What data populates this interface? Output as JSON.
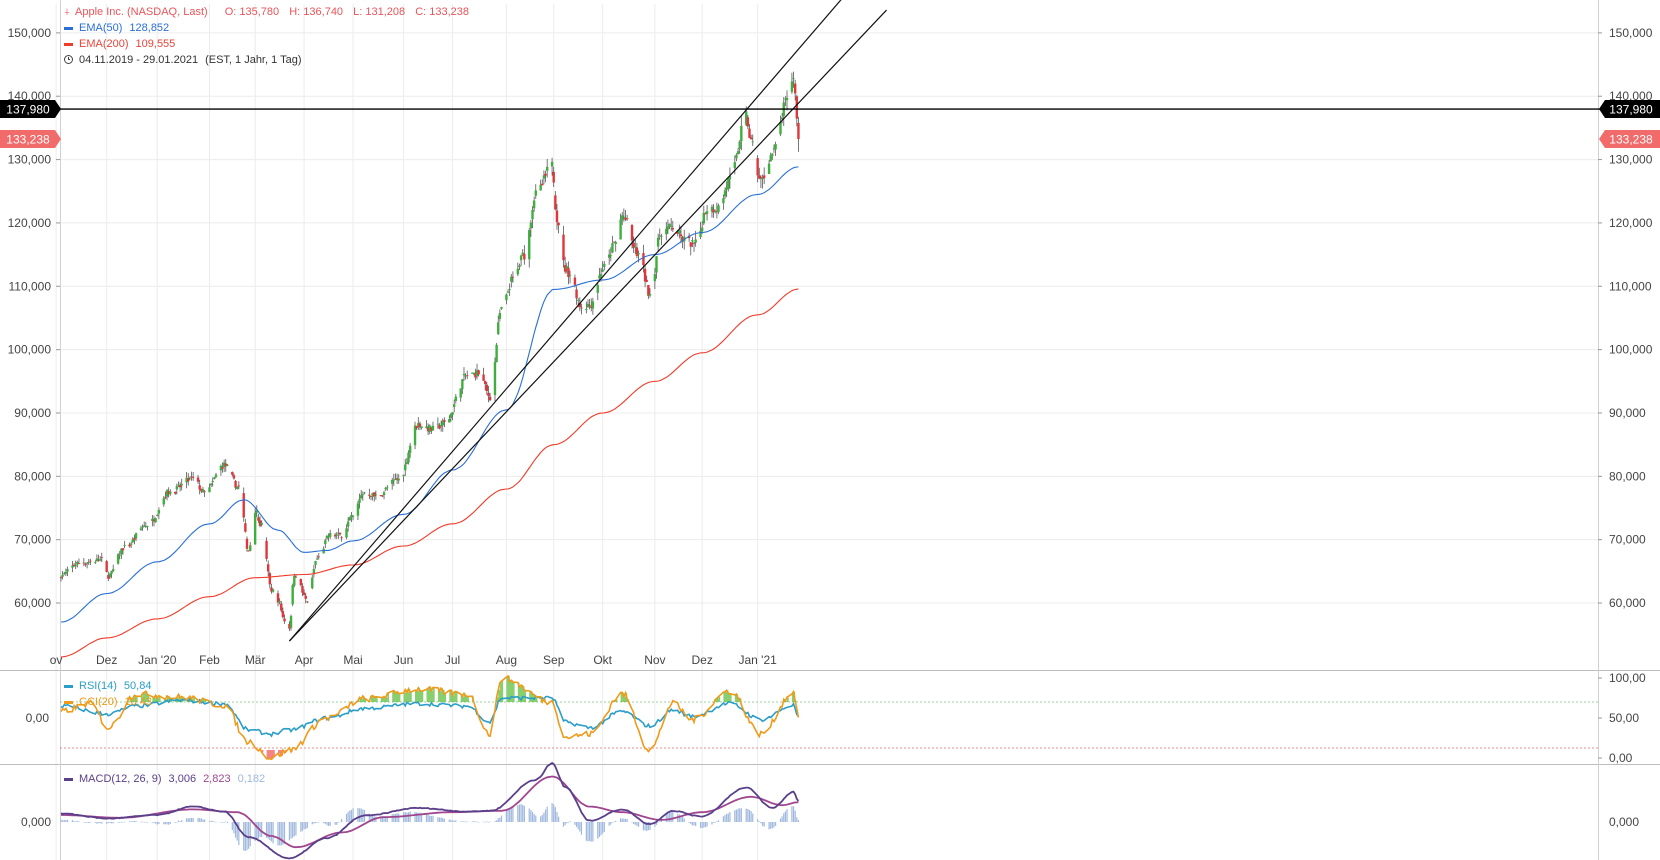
{
  "legend": {
    "title": "Apple Inc. (NASDAQ, Last)",
    "ohlc": {
      "o": "O: 135,780",
      "h": "H: 136,740",
      "l": "L: 131,208",
      "c": "C: 133,238"
    },
    "ema50": {
      "label": "EMA(50)",
      "value": "128,852"
    },
    "ema200": {
      "label": "EMA(200)",
      "value": "109,555"
    },
    "range": "04.11.2019 - 29.01.2021",
    "interval": "(EST, 1 Jahr, 1 Tag)",
    "rsi": {
      "label": "RSI(14)",
      "value": "50,84"
    },
    "cci": {
      "label": "CCI(20)",
      "value": "10,43"
    },
    "macd": {
      "label": "MACD(12, 26, 9)",
      "v1": "3,006",
      "v2": "2,823",
      "v3": "0,182"
    }
  },
  "colors": {
    "up": "#3fae3f",
    "down": "#e0363b",
    "ema50": "#2a6fd6",
    "ema200": "#f03c2a",
    "rsi": "#2a9ec9",
    "cci": "#f09a1a",
    "macd": "#5a3f8a",
    "signal": "#a0468f",
    "hist": "#9fb8de",
    "hline": "#000000",
    "last_badge": "#f26b6b"
  },
  "chart_data": [
    {
      "type": "candlestick",
      "title": "Apple Inc. (NASDAQ, Last)",
      "y_ticks": [
        "150,000",
        "140,000",
        "130,000",
        "120,000",
        "110,000",
        "100,000",
        "90,000",
        "80,000",
        "70,000",
        "60,000"
      ],
      "ylim": [
        52.5,
        155.5
      ],
      "x_ticks": [
        "ov",
        "Dez",
        "Jan '20",
        "Feb",
        "Mär",
        "Apr",
        "Mai",
        "Jun",
        "Jul",
        "Aug",
        "Sep",
        "Okt",
        "Nov",
        "Dez",
        "Jan '21"
      ],
      "x_tick_dates": [
        "2019-11-01",
        "2019-12-02",
        "2020-01-02",
        "2020-02-03",
        "2020-03-02",
        "2020-04-01",
        "2020-05-01",
        "2020-06-01",
        "2020-07-01",
        "2020-08-03",
        "2020-09-01",
        "2020-10-01",
        "2020-11-02",
        "2020-12-01",
        "2021-01-04"
      ],
      "horizontal_line": {
        "value": 137.98,
        "label": "137,980"
      },
      "last_price": {
        "value": 133.238,
        "label": "133,238"
      },
      "close_anchors": [
        [
          "2019-11-04",
          64.4
        ],
        [
          "2019-11-15",
          66.3
        ],
        [
          "2019-11-29",
          66.8
        ],
        [
          "2019-12-03",
          64.3
        ],
        [
          "2019-12-13",
          68.8
        ],
        [
          "2019-12-27",
          72.4
        ],
        [
          "2020-01-10",
          77.6
        ],
        [
          "2020-01-24",
          79.6
        ],
        [
          "2020-01-31",
          77.4
        ],
        [
          "2020-02-12",
          81.8
        ],
        [
          "2020-02-21",
          78.3
        ],
        [
          "2020-02-27",
          68.3
        ],
        [
          "2020-03-02",
          74.7
        ],
        [
          "2020-03-06",
          72.3
        ],
        [
          "2020-03-12",
          62.1
        ],
        [
          "2020-03-16",
          60.5
        ],
        [
          "2020-03-20",
          57.3
        ],
        [
          "2020-03-23",
          56.1
        ],
        [
          "2020-03-26",
          64.6
        ],
        [
          "2020-04-03",
          60.4
        ],
        [
          "2020-04-09",
          67.0
        ],
        [
          "2020-04-17",
          70.7
        ],
        [
          "2020-04-24",
          70.7
        ],
        [
          "2020-04-30",
          73.4
        ],
        [
          "2020-05-08",
          77.5
        ],
        [
          "2020-05-15",
          76.9
        ],
        [
          "2020-05-29",
          79.5
        ],
        [
          "2020-06-10",
          88.2
        ],
        [
          "2020-06-19",
          87.4
        ],
        [
          "2020-06-26",
          88.4
        ],
        [
          "2020-07-10",
          95.9
        ],
        [
          "2020-07-17",
          96.3
        ],
        [
          "2020-07-24",
          92.6
        ],
        [
          "2020-07-31",
          106.3
        ],
        [
          "2020-08-07",
          111.1
        ],
        [
          "2020-08-14",
          115.0
        ],
        [
          "2020-08-21",
          124.4
        ],
        [
          "2020-08-31",
          129.0
        ],
        [
          "2020-09-03",
          120.9
        ],
        [
          "2020-09-08",
          112.8
        ],
        [
          "2020-09-11",
          112.0
        ],
        [
          "2020-09-18",
          106.8
        ],
        [
          "2020-09-23",
          107.1
        ],
        [
          "2020-10-02",
          113.0
        ],
        [
          "2020-10-09",
          116.9
        ],
        [
          "2020-10-13",
          121.1
        ],
        [
          "2020-10-23",
          115.0
        ],
        [
          "2020-10-30",
          108.9
        ],
        [
          "2020-11-06",
          118.7
        ],
        [
          "2020-11-13",
          119.3
        ],
        [
          "2020-11-20",
          117.3
        ],
        [
          "2020-11-27",
          116.6
        ],
        [
          "2020-12-04",
          122.3
        ],
        [
          "2020-12-11",
          122.4
        ],
        [
          "2020-12-18",
          126.7
        ],
        [
          "2020-12-28",
          136.7
        ],
        [
          "2020-12-31",
          132.7
        ],
        [
          "2021-01-06",
          126.6
        ],
        [
          "2021-01-13",
          130.9
        ],
        [
          "2021-01-22",
          139.1
        ],
        [
          "2021-01-26",
          143.2
        ],
        [
          "2021-01-28",
          137.1
        ],
        [
          "2021-01-29",
          133.2
        ]
      ],
      "ema50_anchors": [
        [
          "2019-11-04",
          57.0
        ],
        [
          "2019-12-02",
          61.5
        ],
        [
          "2020-01-02",
          66.5
        ],
        [
          "2020-02-03",
          72.5
        ],
        [
          "2020-02-24",
          76.3
        ],
        [
          "2020-03-16",
          71.5
        ],
        [
          "2020-04-01",
          68.0
        ],
        [
          "2020-04-15",
          68.3
        ],
        [
          "2020-05-01",
          69.8
        ],
        [
          "2020-06-01",
          74.0
        ],
        [
          "2020-07-01",
          81.0
        ],
        [
          "2020-08-03",
          90.5
        ],
        [
          "2020-09-01",
          109.5
        ],
        [
          "2020-10-01",
          111.0
        ],
        [
          "2020-11-02",
          115.0
        ],
        [
          "2020-12-01",
          118.5
        ],
        [
          "2021-01-04",
          124.5
        ],
        [
          "2021-01-29",
          128.85
        ]
      ],
      "ema200_anchors": [
        [
          "2019-11-04",
          51.5
        ],
        [
          "2019-12-02",
          54.5
        ],
        [
          "2020-01-02",
          57.5
        ],
        [
          "2020-02-03",
          61.0
        ],
        [
          "2020-03-02",
          64.0
        ],
        [
          "2020-04-01",
          64.5
        ],
        [
          "2020-05-01",
          66.0
        ],
        [
          "2020-06-01",
          69.0
        ],
        [
          "2020-07-01",
          72.5
        ],
        [
          "2020-08-03",
          78.0
        ],
        [
          "2020-09-01",
          85.0
        ],
        [
          "2020-10-01",
          90.0
        ],
        [
          "2020-11-02",
          95.0
        ],
        [
          "2020-12-01",
          99.5
        ],
        [
          "2021-01-04",
          105.5
        ],
        [
          "2021-01-29",
          109.555
        ]
      ],
      "trendlines": [
        {
          "from": [
            "2020-03-23",
            54.0
          ],
          "to": [
            "2021-02-25",
            155.5
          ]
        },
        {
          "from": [
            "2020-03-23",
            54.0
          ],
          "to": [
            "2021-03-24",
            153.6
          ]
        }
      ]
    },
    {
      "type": "line",
      "name": "RSI(14) / CCI(20)",
      "y_ticks_right": [
        "100,00",
        "50,00",
        "0,00"
      ],
      "y_ticks_left": [
        "0,00"
      ],
      "rsi_anchors": [
        [
          "2019-11-04",
          65
        ],
        [
          "2019-12-03",
          55
        ],
        [
          "2019-12-20",
          65
        ],
        [
          "2020-01-17",
          72
        ],
        [
          "2020-02-12",
          68
        ],
        [
          "2020-02-27",
          35
        ],
        [
          "2020-03-12",
          30
        ],
        [
          "2020-03-23",
          35
        ],
        [
          "2020-04-15",
          50
        ],
        [
          "2020-05-08",
          62
        ],
        [
          "2020-06-10",
          68
        ],
        [
          "2020-07-10",
          65
        ],
        [
          "2020-07-24",
          45
        ],
        [
          "2020-07-31",
          75
        ],
        [
          "2020-08-31",
          75
        ],
        [
          "2020-09-08",
          45
        ],
        [
          "2020-09-23",
          38
        ],
        [
          "2020-10-13",
          58
        ],
        [
          "2020-10-30",
          40
        ],
        [
          "2020-11-13",
          60
        ],
        [
          "2020-11-25",
          52
        ],
        [
          "2020-12-18",
          68
        ],
        [
          "2021-01-06",
          48
        ],
        [
          "2021-01-26",
          66
        ],
        [
          "2021-01-29",
          50
        ]
      ],
      "cci_anchors": [
        [
          "2019-11-04",
          40
        ],
        [
          "2019-11-22",
          90
        ],
        [
          "2019-12-03",
          -60
        ],
        [
          "2019-12-20",
          150
        ],
        [
          "2020-01-17",
          130
        ],
        [
          "2020-02-12",
          80
        ],
        [
          "2020-02-27",
          -150
        ],
        [
          "2020-03-12",
          -250
        ],
        [
          "2020-03-23",
          -200
        ],
        [
          "2020-04-15",
          0
        ],
        [
          "2020-05-08",
          120
        ],
        [
          "2020-06-10",
          180
        ],
        [
          "2020-07-10",
          150
        ],
        [
          "2020-07-24",
          -100
        ],
        [
          "2020-07-31",
          250
        ],
        [
          "2020-08-31",
          100
        ],
        [
          "2020-09-08",
          -120
        ],
        [
          "2020-09-23",
          -100
        ],
        [
          "2020-10-13",
          150
        ],
        [
          "2020-10-30",
          -200
        ],
        [
          "2020-11-13",
          90
        ],
        [
          "2020-11-25",
          -10
        ],
        [
          "2020-12-18",
          170
        ],
        [
          "2021-01-06",
          -100
        ],
        [
          "2021-01-26",
          160
        ],
        [
          "2021-01-29",
          10.43
        ]
      ]
    },
    {
      "type": "line",
      "name": "MACD(12, 26, 9)",
      "y_ticks_right": [
        "0,000"
      ],
      "y_ticks_left": [
        "0,000"
      ],
      "macd_anchors": [
        [
          "2019-11-04",
          1.2
        ],
        [
          "2019-12-03",
          0.5
        ],
        [
          "2020-01-02",
          1.0
        ],
        [
          "2020-01-24",
          2.2
        ],
        [
          "2020-02-12",
          1.5
        ],
        [
          "2020-02-27",
          -2.2
        ],
        [
          "2020-03-23",
          -5.2
        ],
        [
          "2020-04-15",
          -2.3
        ],
        [
          "2020-05-08",
          0.9
        ],
        [
          "2020-06-10",
          2.0
        ],
        [
          "2020-07-10",
          1.5
        ],
        [
          "2020-07-24",
          1.6
        ],
        [
          "2020-08-21",
          6.0
        ],
        [
          "2020-08-31",
          8.4
        ],
        [
          "2020-09-08",
          5.0
        ],
        [
          "2020-09-23",
          0.2
        ],
        [
          "2020-10-13",
          1.8
        ],
        [
          "2020-10-30",
          -0.3
        ],
        [
          "2020-11-13",
          1.6
        ],
        [
          "2020-11-30",
          0.8
        ],
        [
          "2020-12-28",
          4.9
        ],
        [
          "2021-01-13",
          2.0
        ],
        [
          "2021-01-26",
          4.3
        ],
        [
          "2021-01-29",
          3.006
        ]
      ],
      "signal_anchors": [
        [
          "2019-11-04",
          1.0
        ],
        [
          "2019-12-10",
          0.6
        ],
        [
          "2020-01-24",
          1.8
        ],
        [
          "2020-02-20",
          1.4
        ],
        [
          "2020-03-12",
          -2.0
        ],
        [
          "2020-03-27",
          -3.6
        ],
        [
          "2020-04-24",
          -1.5
        ],
        [
          "2020-05-20",
          0.7
        ],
        [
          "2020-07-01",
          1.4
        ],
        [
          "2020-07-31",
          1.6
        ],
        [
          "2020-08-31",
          6.5
        ],
        [
          "2020-09-23",
          2.2
        ],
        [
          "2020-10-13",
          1.4
        ],
        [
          "2020-11-06",
          0.3
        ],
        [
          "2020-12-01",
          1.4
        ],
        [
          "2020-12-31",
          3.6
        ],
        [
          "2021-01-19",
          2.4
        ],
        [
          "2021-01-29",
          2.823
        ]
      ]
    }
  ]
}
